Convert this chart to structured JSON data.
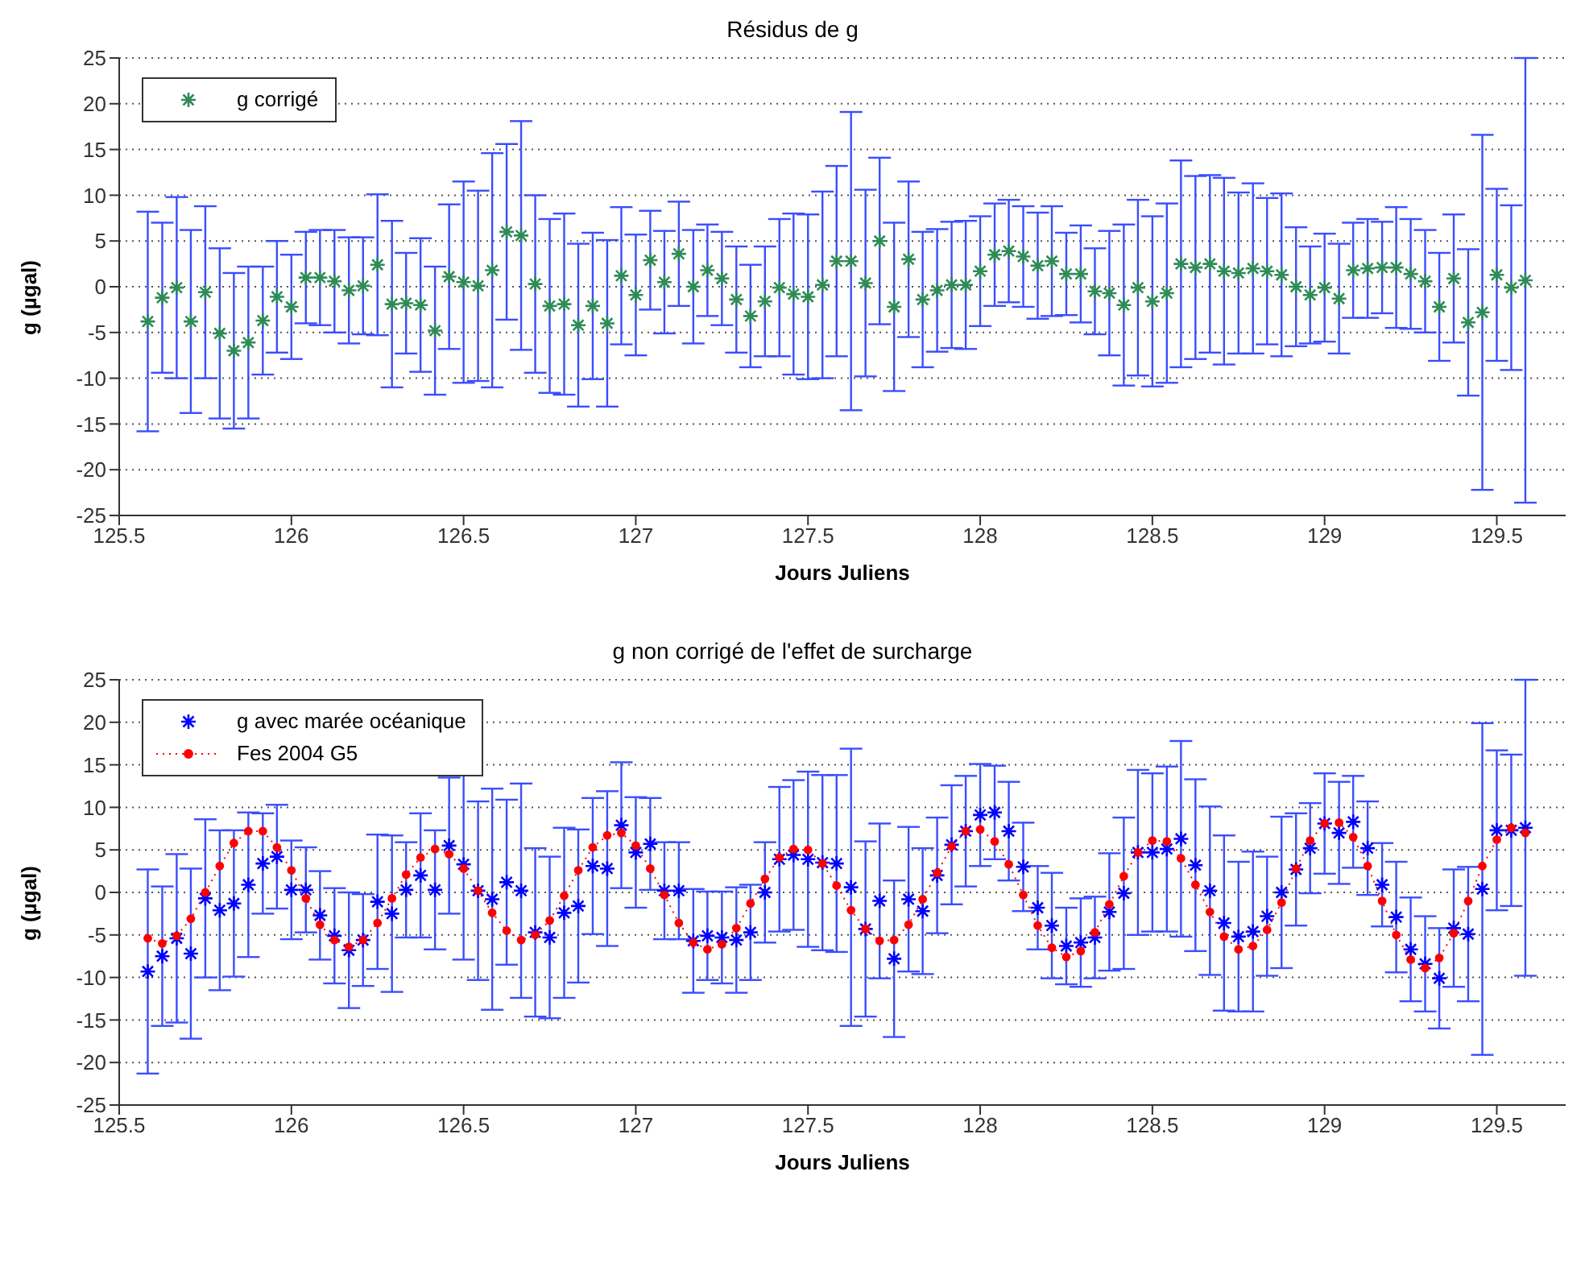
{
  "chart_data": [
    {
      "type": "scatter",
      "title": "Résidus de g",
      "xlabel": "Jours Juliens",
      "ylabel": "g (µgal)",
      "xlim": [
        125.5,
        129.7
      ],
      "xticks": [
        125.5,
        126,
        126.5,
        127,
        127.5,
        128,
        128.5,
        129,
        129.5
      ],
      "ylim": [
        -25,
        25
      ],
      "yticks": [
        -25,
        -20,
        -15,
        -10,
        -5,
        0,
        5,
        10,
        15,
        20,
        25
      ],
      "grid": "y",
      "legend": "top left",
      "marker": "cross",
      "x": [
        125.583,
        125.625,
        125.667,
        125.708,
        125.75,
        125.792,
        125.833,
        125.875,
        125.917,
        125.958,
        126,
        126.042,
        126.083,
        126.125,
        126.167,
        126.208,
        126.25,
        126.292,
        126.333,
        126.375,
        126.417,
        126.458,
        126.5,
        126.542,
        126.583,
        126.625,
        126.667,
        126.708,
        126.75,
        126.792,
        126.833,
        126.875,
        126.917,
        126.958,
        127,
        127.042,
        127.083,
        127.125,
        127.167,
        127.208,
        127.25,
        127.292,
        127.333,
        127.375,
        127.417,
        127.458,
        127.5,
        127.542,
        127.583,
        127.625,
        127.667,
        127.708,
        127.75,
        127.792,
        127.833,
        127.875,
        127.917,
        127.958,
        128,
        128.042,
        128.083,
        128.125,
        128.167,
        128.208,
        128.25,
        128.292,
        128.333,
        128.375,
        128.417,
        128.458,
        128.5,
        128.542,
        128.583,
        128.625,
        128.667,
        128.708,
        128.75,
        128.792,
        128.833,
        128.875,
        128.917,
        128.958,
        129,
        129.042,
        129.083,
        129.125,
        129.167,
        129.208,
        129.25,
        129.292,
        129.333,
        129.375,
        129.417,
        129.458,
        129.5,
        129.542,
        129.583
      ],
      "series": [
        {
          "name": "g corrigé",
          "color": "#2e8b57",
          "values": [
            -3.8,
            -1.2,
            -0.1,
            -3.8,
            -0.6,
            -5.1,
            -7.0,
            -6.1,
            -3.7,
            -1.1,
            -2.2,
            1.0,
            1.0,
            0.6,
            -0.4,
            0.1,
            2.4,
            -1.9,
            -1.8,
            -2.0,
            -4.8,
            1.1,
            0.5,
            0.1,
            1.8,
            6.0,
            5.6,
            0.3,
            -2.1,
            -1.9,
            -4.2,
            -2.1,
            -4.0,
            1.2,
            -0.9,
            2.9,
            0.5,
            3.6,
            0.0,
            1.8,
            0.9,
            -1.4,
            -3.2,
            -1.6,
            -0.1,
            -0.8,
            -1.1,
            0.2,
            2.8,
            2.8,
            0.4,
            5.0,
            -2.2,
            3.0,
            -1.4,
            -0.4,
            0.2,
            0.2,
            1.7,
            3.5,
            3.9,
            3.3,
            2.3,
            2.8,
            1.4,
            1.4,
            -0.5,
            -0.7,
            -2.0,
            -0.1,
            -1.6,
            -0.7,
            2.5,
            2.1,
            2.5,
            1.7,
            1.5,
            2.0,
            1.7,
            1.3,
            0.0,
            -0.9,
            -0.1,
            -1.3,
            1.8,
            2.0,
            2.1,
            2.1,
            1.4,
            0.6,
            -2.2,
            0.9,
            -3.9,
            -2.8,
            1.3,
            -0.1,
            0.7
          ],
          "errors": [
            12,
            8.2,
            9.9,
            10,
            9.4,
            9.3,
            8.5,
            8.3,
            5.9,
            6.1,
            5.7,
            5,
            5.2,
            5.6,
            5.8,
            5.3,
            7.7,
            9.1,
            5.5,
            7.3,
            7,
            7.9,
            11,
            10.4,
            12.8,
            9.6,
            12.5,
            9.7,
            9.5,
            9.9,
            8.9,
            8,
            9.1,
            7.5,
            6.6,
            5.4,
            5.6,
            5.7,
            6.2,
            5,
            5.1,
            5.8,
            5.6,
            6,
            7.5,
            8.8,
            9,
            10.2,
            10.4,
            16.3,
            10.2,
            9.1,
            9.2,
            8.5,
            7.4,
            6.7,
            6.9,
            7,
            6,
            5.6,
            5.6,
            5.5,
            5.8,
            6,
            4.5,
            5.3,
            4.7,
            6.8,
            8.8,
            9.6,
            9.3,
            9.8,
            11.3,
            10,
            9.7,
            10.2,
            8.8,
            9.3,
            8,
            8.9,
            6.5,
            5.3,
            5.9,
            6,
            5.2,
            5.4,
            5,
            6.6,
            6,
            5.6,
            5.9,
            7,
            8,
            19.4,
            9.4,
            9,
            24.3
          ]
        }
      ]
    },
    {
      "type": "scatter",
      "title": "g non corrigé de l'effet de surcharge",
      "xlabel": "Jours Juliens",
      "ylabel": "g (µgal)",
      "xlim": [
        125.5,
        129.7
      ],
      "xticks": [
        125.5,
        126,
        126.5,
        127,
        127.5,
        128,
        128.5,
        129,
        129.5
      ],
      "ylim": [
        -25,
        25
      ],
      "yticks": [
        -25,
        -20,
        -15,
        -10,
        -5,
        0,
        5,
        10,
        15,
        20,
        25
      ],
      "grid": "y",
      "legend": "top left",
      "marker": "cross",
      "x": [
        125.583,
        125.625,
        125.667,
        125.708,
        125.75,
        125.792,
        125.833,
        125.875,
        125.917,
        125.958,
        126,
        126.042,
        126.083,
        126.125,
        126.167,
        126.208,
        126.25,
        126.292,
        126.333,
        126.375,
        126.417,
        126.458,
        126.5,
        126.542,
        126.583,
        126.625,
        126.667,
        126.708,
        126.75,
        126.792,
        126.833,
        126.875,
        126.917,
        126.958,
        127,
        127.042,
        127.083,
        127.125,
        127.167,
        127.208,
        127.25,
        127.292,
        127.333,
        127.375,
        127.417,
        127.458,
        127.5,
        127.542,
        127.583,
        127.625,
        127.667,
        127.708,
        127.75,
        127.792,
        127.833,
        127.875,
        127.917,
        127.958,
        128,
        128.042,
        128.083,
        128.125,
        128.167,
        128.208,
        128.25,
        128.292,
        128.333,
        128.375,
        128.417,
        128.458,
        128.5,
        128.542,
        128.583,
        128.625,
        128.667,
        128.708,
        128.75,
        128.792,
        128.833,
        128.875,
        128.917,
        128.958,
        129,
        129.042,
        129.083,
        129.125,
        129.167,
        129.208,
        129.25,
        129.292,
        129.333,
        129.375,
        129.417,
        129.458,
        129.5,
        129.542,
        129.583
      ],
      "series": [
        {
          "name": "g avec marée océanique",
          "color": "#0000ff",
          "values": [
            -9.3,
            -7.5,
            -5.4,
            -7.2,
            -0.7,
            -2.1,
            -1.3,
            0.9,
            3.4,
            4.2,
            0.3,
            0.3,
            -2.7,
            -5.1,
            -6.8,
            -5.6,
            -1.1,
            -2.5,
            0.3,
            2.0,
            0.3,
            5.5,
            3.3,
            0.2,
            -0.8,
            1.2,
            0.2,
            -4.7,
            -5.3,
            -2.4,
            -1.6,
            3.1,
            2.8,
            7.9,
            4.7,
            5.7,
            0.2,
            0.2,
            -5.7,
            -5.1,
            -5.3,
            -5.6,
            -4.7,
            0.0,
            3.9,
            4.4,
            3.9,
            3.5,
            3.4,
            0.6,
            -4.3,
            -1.0,
            -7.8,
            -0.8,
            -2.2,
            2.0,
            5.6,
            7.2,
            9.1,
            9.4,
            7.2,
            3.0,
            -1.8,
            -3.9,
            -6.3,
            -5.9,
            -5.3,
            -2.3,
            -0.1,
            4.7,
            4.7,
            5.1,
            6.3,
            3.2,
            0.2,
            -3.6,
            -5.2,
            -4.6,
            -2.8,
            0.0,
            2.7,
            5.2,
            8.1,
            7.0,
            8.3,
            5.2,
            0.9,
            -2.9,
            -6.7,
            -8.4,
            -10.1,
            -4.2,
            -4.9,
            0.4,
            7.3,
            7.3,
            7.6
          ],
          "errors": [
            12,
            8.2,
            9.9,
            10,
            9.3,
            9.4,
            8.6,
            8.5,
            5.9,
            6.1,
            5.8,
            5,
            5.2,
            5.6,
            6.8,
            5.4,
            7.9,
            9.2,
            5.6,
            7.3,
            7,
            8,
            11.2,
            10.5,
            13,
            9.7,
            12.6,
            9.9,
            9.5,
            10,
            9,
            8,
            9.1,
            7.4,
            6.5,
            5.4,
            5.7,
            5.7,
            6.1,
            5.2,
            5.4,
            6.2,
            5.6,
            5.9,
            8.5,
            8.8,
            10.3,
            10.3,
            10.4,
            16.3,
            10.3,
            9.1,
            9.2,
            8.5,
            7.4,
            6.8,
            7,
            6.5,
            6,
            5.5,
            5.8,
            5.2,
            4.9,
            6.2,
            4.5,
            5.2,
            4.8,
            6.9,
            8.9,
            9.7,
            9.3,
            9.7,
            11.5,
            10.1,
            9.9,
            10.3,
            8.8,
            9.4,
            7,
            8.9,
            6.6,
            5.3,
            5.9,
            6,
            5.4,
            5.5,
            4.9,
            6.5,
            6.1,
            5.6,
            5.9,
            6.9,
            7.9,
            19.5,
            9.4,
            8.9,
            17.4
          ]
        },
        {
          "name": "Fes 2004 G5",
          "type": "line",
          "color": "#ff0000",
          "marker": "circle",
          "line_style": "dotted",
          "values": [
            -5.4,
            -6.0,
            -5.1,
            -3.1,
            0.0,
            3.1,
            5.8,
            7.2,
            7.2,
            5.3,
            2.6,
            -0.7,
            -3.8,
            -5.6,
            -6.4,
            -5.6,
            -3.6,
            -0.7,
            2.1,
            4.1,
            5.1,
            4.5,
            2.8,
            0.2,
            -2.4,
            -4.5,
            -5.6,
            -5.0,
            -3.3,
            -0.4,
            2.6,
            5.3,
            6.7,
            7.0,
            5.5,
            2.8,
            -0.3,
            -3.6,
            -5.9,
            -6.7,
            -6.1,
            -4.2,
            -1.3,
            1.6,
            4.1,
            5.1,
            5.0,
            3.4,
            0.8,
            -2.1,
            -4.3,
            -5.7,
            -5.6,
            -3.8,
            -0.8,
            2.3,
            5.4,
            7.2,
            7.4,
            6.0,
            3.3,
            -0.3,
            -3.9,
            -6.5,
            -7.6,
            -6.9,
            -4.7,
            -1.4,
            1.9,
            4.7,
            6.1,
            6.0,
            4.0,
            0.9,
            -2.3,
            -5.2,
            -6.7,
            -6.3,
            -4.4,
            -1.2,
            2.8,
            6.1,
            8.1,
            8.2,
            6.5,
            3.1,
            -1.0,
            -5.0,
            -7.9,
            -8.9,
            -7.7,
            -4.8,
            -1.0,
            3.1,
            6.2,
            7.6,
            7.0
          ]
        }
      ]
    }
  ]
}
